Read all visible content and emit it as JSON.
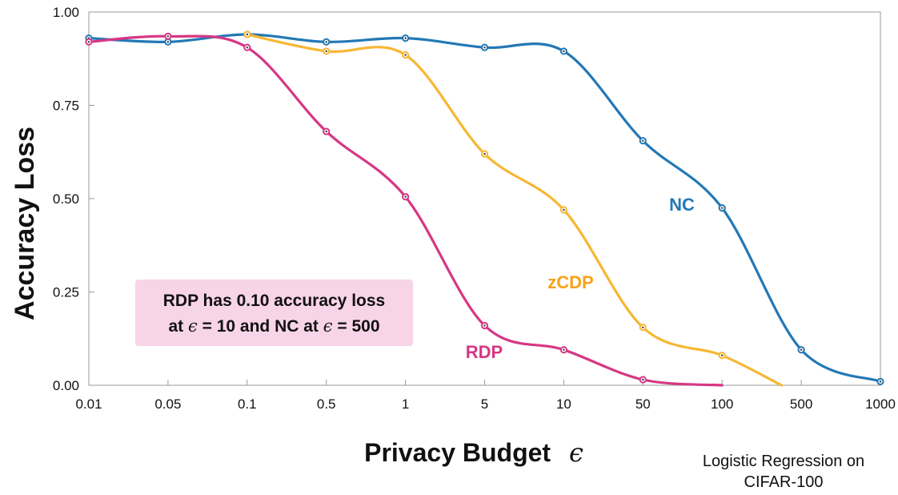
{
  "chart_data": {
    "type": "line",
    "x_scale": "categorical",
    "categories": [
      "0.01",
      "0.05",
      "0.1",
      "0.5",
      "1",
      "5",
      "10",
      "50",
      "100",
      "500",
      "1000"
    ],
    "xlabel": "Privacy Budget",
    "xlabel_symbol": "ϵ",
    "ylabel": "Accuracy Loss",
    "ylim": [
      0,
      1
    ],
    "yticks": [
      "0.00",
      "0.25",
      "0.50",
      "0.75",
      "1.00"
    ],
    "grid": false,
    "series": [
      {
        "name": "NC",
        "color": "#2378b5",
        "x": [
          "0.01",
          "0.05",
          "0.1",
          "0.5",
          "1",
          "5",
          "10",
          "50",
          "100",
          "500",
          "1000"
        ],
        "values": [
          0.93,
          0.92,
          0.94,
          0.92,
          0.93,
          0.905,
          0.895,
          0.655,
          0.475,
          0.095,
          0.01
        ],
        "tail_end": null
      },
      {
        "name": "zCDP",
        "color": "#f7b733",
        "x": [
          "0.1",
          "0.5",
          "1",
          "5",
          "10",
          "50",
          "100"
        ],
        "values": [
          0.94,
          0.895,
          0.885,
          0.62,
          0.47,
          0.155,
          0.08
        ],
        "tail_end": {
          "x_index": 8.75,
          "value": 0.0
        }
      },
      {
        "name": "RDP",
        "color": "#d63784",
        "x": [
          "0.01",
          "0.05",
          "0.1",
          "0.5",
          "1",
          "5",
          "10",
          "50"
        ],
        "values": [
          0.92,
          0.935,
          0.905,
          0.68,
          0.505,
          0.16,
          0.095,
          0.015
        ],
        "tail_end": {
          "x_index": 8.0,
          "value": 0.0
        }
      }
    ]
  },
  "callout": {
    "line1": "RDP has 0.10 accuracy loss",
    "line2_a": "at",
    "line2_sym1": "ϵ",
    "line2_b": "= 10 and NC at",
    "line2_sym2": "ϵ",
    "line2_c": "= 500"
  },
  "note": {
    "line1": "Logistic Regression on",
    "line2": "CIFAR-100"
  }
}
